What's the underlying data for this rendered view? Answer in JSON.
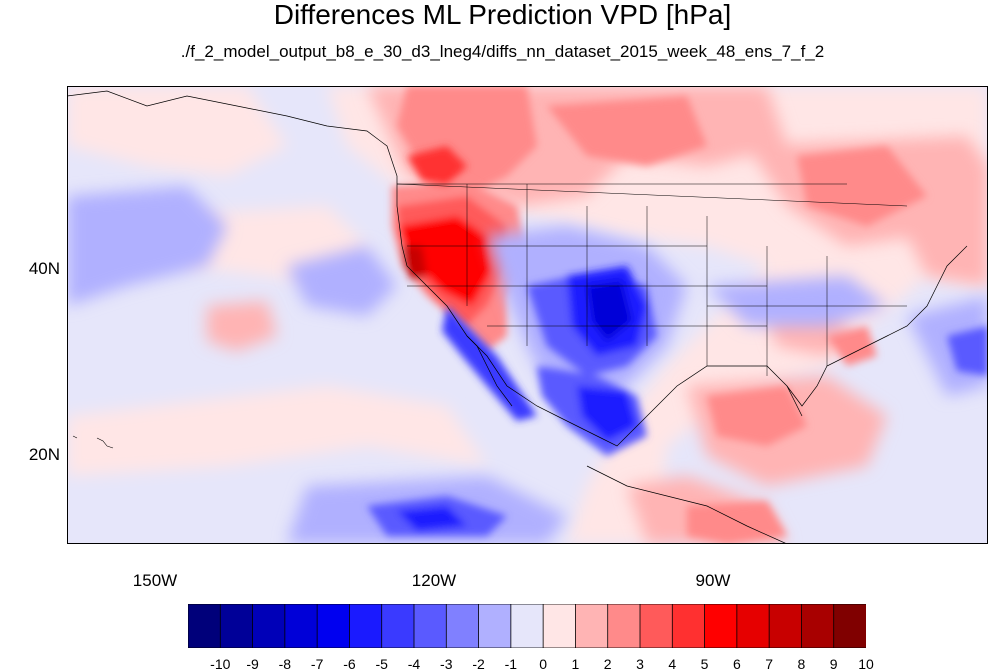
{
  "title": "Differences ML Prediction VPD [hPa]",
  "subtitle": "./f_2_model_output_b8_e_30_d3_lneg4/diffs_nn_dataset_2015_week_48_ens_7_f_2",
  "map": {
    "lat_labels": [
      "40N",
      "20N"
    ],
    "lon_labels": [
      "150W",
      "120W",
      "90W"
    ]
  },
  "colorbar": {
    "labels": [
      "-10",
      "-9",
      "-8",
      "-7",
      "-6",
      "-5",
      "-4",
      "-3",
      "-2",
      "-1",
      "0",
      "1",
      "2",
      "3",
      "4",
      "5",
      "6",
      "7",
      "8",
      "9",
      "10"
    ],
    "colors": [
      "#00007a",
      "#000098",
      "#0000b8",
      "#0000d8",
      "#0000f0",
      "#1a1aff",
      "#3a3aff",
      "#5a5aff",
      "#8080ff",
      "#b0b0ff",
      "#e6e6fa",
      "#ffe6e6",
      "#ffb4b4",
      "#ff8a8a",
      "#ff5a5a",
      "#ff3030",
      "#ff0000",
      "#e60000",
      "#c80000",
      "#a80000",
      "#800000"
    ]
  }
}
